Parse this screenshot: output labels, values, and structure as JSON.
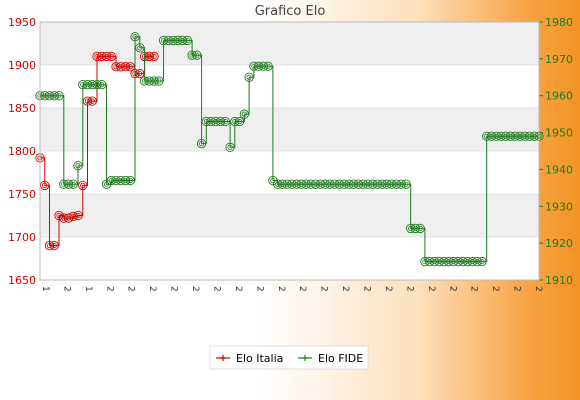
{
  "chart_data": {
    "type": "line",
    "title": "Grafico Elo",
    "legend_position": "bottom",
    "grid": true,
    "y_left": {
      "ylim": [
        1650,
        1950
      ],
      "ticks": [
        1650,
        1700,
        1750,
        1800,
        1850,
        1900,
        1950
      ],
      "color": "#d40000"
    },
    "y_right": {
      "ylim": [
        1910,
        1980
      ],
      "ticks": [
        1910,
        1920,
        1930,
        1940,
        1950,
        1960,
        1970,
        1980
      ],
      "color": "#1f7a1f"
    },
    "x_label_prefixes": [
      "1",
      "2",
      "1",
      "2",
      "2",
      "2",
      "2",
      "2",
      "2",
      "2",
      "2",
      "2",
      "2",
      "2",
      "2",
      "2",
      "2",
      "2",
      "2",
      "2",
      "2",
      "2",
      "2",
      "2"
    ],
    "series": [
      {
        "name": "Elo Italia",
        "axis": "left",
        "color": "#d40000",
        "marker": "plus",
        "values": [
          1792,
          1760,
          1690,
          1690,
          1725,
          1722,
          1722,
          1724,
          1725,
          1760,
          1858,
          1858,
          1910,
          1910,
          1910,
          1910,
          1898,
          1898,
          1898,
          1898,
          1890,
          1890,
          1910,
          1910,
          1910
        ]
      },
      {
        "name": "Elo FIDE",
        "axis": "right",
        "color": "#1f7a1f",
        "marker": "circle",
        "values": [
          1960,
          1960,
          1960,
          1960,
          1960,
          1936,
          1936,
          1936,
          1941,
          1963,
          1963,
          1963,
          1963,
          1963,
          1936,
          1937,
          1937,
          1937,
          1937,
          1937,
          1976,
          1973,
          1964,
          1964,
          1964,
          1964,
          1975,
          1975,
          1975,
          1975,
          1975,
          1975,
          1971,
          1971,
          1947,
          1953,
          1953,
          1953,
          1953,
          1953,
          1946,
          1953,
          1953,
          1955,
          1965,
          1968,
          1968,
          1968,
          1968,
          1937,
          1936,
          1936,
          1936,
          1936,
          1936,
          1936,
          1936,
          1936,
          1936,
          1936,
          1936,
          1936,
          1936,
          1936,
          1936,
          1936,
          1936,
          1936,
          1936,
          1936,
          1936,
          1936,
          1936,
          1936,
          1936,
          1936,
          1936,
          1936,
          1924,
          1924,
          1924,
          1915,
          1915,
          1915,
          1915,
          1915,
          1915,
          1915,
          1915,
          1915,
          1915,
          1915,
          1915,
          1915,
          1949,
          1949,
          1949,
          1949,
          1949,
          1949,
          1949,
          1949,
          1949,
          1949,
          1949,
          1949
        ]
      }
    ]
  }
}
